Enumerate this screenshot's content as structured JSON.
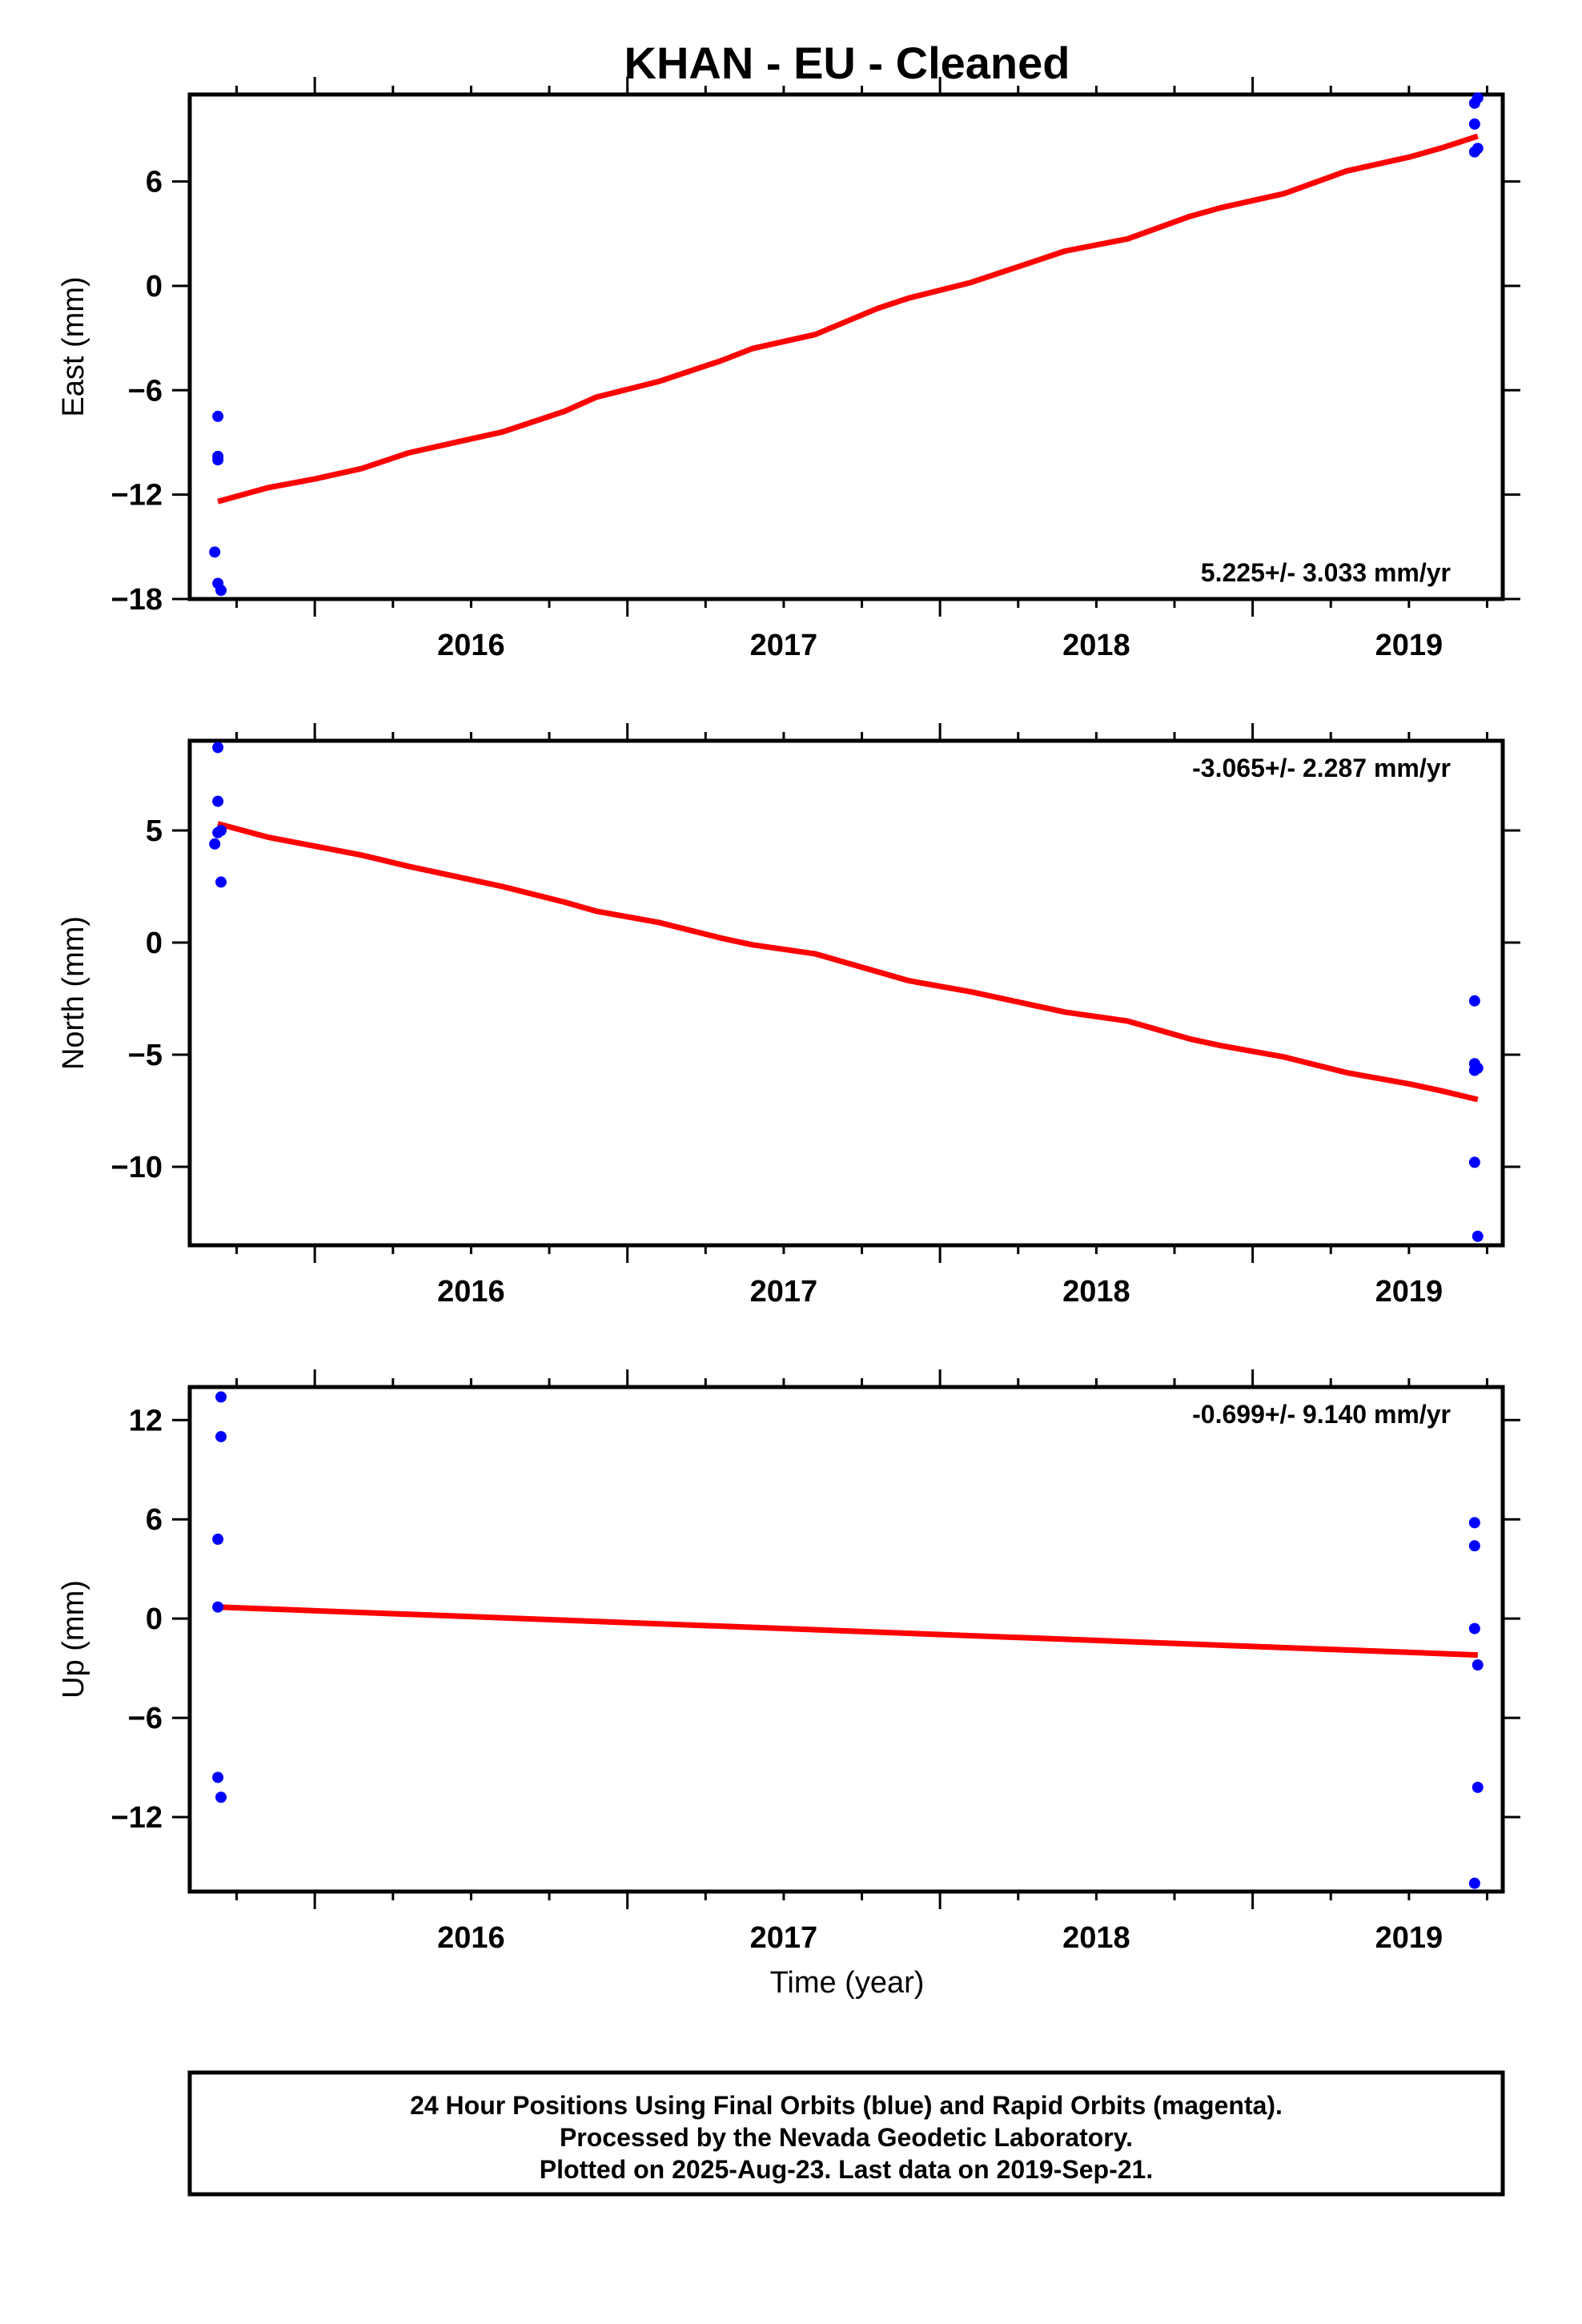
{
  "chart_data": {
    "title": "KHAN  - EU - Cleaned",
    "xlabel": "Time (year)",
    "x_tick_labels": [
      "2016",
      "2017",
      "2018",
      "2019"
    ],
    "xlim": [
      2015.6,
      2019.8
    ],
    "colors": {
      "data": "#0000ff",
      "fit": "#ff0000",
      "frame": "#000000"
    },
    "footer_lines": [
      "24 Hour Positions Using Final Orbits (blue) and Rapid Orbits (magenta).",
      "Processed by the Nevada Geodetic Laboratory.",
      "Plotted on 2025-Aug-23. Last data on 2019-Sep-21."
    ],
    "panels": [
      {
        "name": "east",
        "type": "scatter",
        "ylabel": "East (mm)",
        "ylim": [
          -18,
          11
        ],
        "yticks": [
          -18,
          -12,
          -6,
          0,
          6
        ],
        "rate_label": "5.225+/- 3.033 mm/yr",
        "rate_position": "bottom-right",
        "points": [
          [
            2015.69,
            -7.5
          ],
          [
            2015.69,
            -9.8
          ],
          [
            2015.69,
            -10.0
          ],
          [
            2015.68,
            -15.3
          ],
          [
            2015.69,
            -17.1
          ],
          [
            2015.7,
            -17.5
          ],
          [
            2019.71,
            10.5
          ],
          [
            2019.72,
            10.8
          ],
          [
            2019.71,
            9.3
          ],
          [
            2019.71,
            7.7
          ],
          [
            2019.72,
            7.9
          ]
        ],
        "fit": [
          [
            2015.69,
            -12.4
          ],
          [
            2015.85,
            -11.6
          ],
          [
            2016.0,
            -11.1
          ],
          [
            2016.15,
            -10.5
          ],
          [
            2016.3,
            -9.6
          ],
          [
            2016.5,
            -8.8
          ],
          [
            2016.6,
            -8.4
          ],
          [
            2016.8,
            -7.2
          ],
          [
            2016.9,
            -6.4
          ],
          [
            2017.1,
            -5.5
          ],
          [
            2017.3,
            -4.3
          ],
          [
            2017.4,
            -3.6
          ],
          [
            2017.6,
            -2.8
          ],
          [
            2017.8,
            -1.3
          ],
          [
            2017.9,
            -0.7
          ],
          [
            2018.1,
            0.2
          ],
          [
            2018.3,
            1.4
          ],
          [
            2018.4,
            2.0
          ],
          [
            2018.6,
            2.7
          ],
          [
            2018.8,
            4.0
          ],
          [
            2018.9,
            4.5
          ],
          [
            2019.1,
            5.3
          ],
          [
            2019.3,
            6.6
          ],
          [
            2019.5,
            7.4
          ],
          [
            2019.6,
            7.9
          ],
          [
            2019.72,
            8.6
          ]
        ]
      },
      {
        "name": "north",
        "type": "scatter",
        "ylabel": "North (mm)",
        "ylim": [
          -13.5,
          9
        ],
        "yticks": [
          -10,
          -5,
          0,
          5
        ],
        "rate_label": "-3.065+/- 2.287 mm/yr",
        "rate_position": "top-right",
        "points": [
          [
            2015.69,
            8.7
          ],
          [
            2015.69,
            6.3
          ],
          [
            2015.69,
            4.9
          ],
          [
            2015.68,
            4.4
          ],
          [
            2015.7,
            5.0
          ],
          [
            2015.7,
            2.7
          ],
          [
            2019.71,
            -2.6
          ],
          [
            2019.71,
            -5.4
          ],
          [
            2019.72,
            -5.6
          ],
          [
            2019.71,
            -5.7
          ],
          [
            2019.71,
            -9.8
          ],
          [
            2019.72,
            -13.1
          ]
        ],
        "fit": [
          [
            2015.69,
            5.3
          ],
          [
            2015.85,
            4.7
          ],
          [
            2016.0,
            4.3
          ],
          [
            2016.15,
            3.9
          ],
          [
            2016.3,
            3.4
          ],
          [
            2016.5,
            2.8
          ],
          [
            2016.6,
            2.5
          ],
          [
            2016.8,
            1.8
          ],
          [
            2016.9,
            1.4
          ],
          [
            2017.1,
            0.9
          ],
          [
            2017.3,
            0.2
          ],
          [
            2017.4,
            -0.1
          ],
          [
            2017.6,
            -0.5
          ],
          [
            2017.8,
            -1.3
          ],
          [
            2017.9,
            -1.7
          ],
          [
            2018.1,
            -2.2
          ],
          [
            2018.3,
            -2.8
          ],
          [
            2018.4,
            -3.1
          ],
          [
            2018.6,
            -3.5
          ],
          [
            2018.8,
            -4.3
          ],
          [
            2018.9,
            -4.6
          ],
          [
            2019.1,
            -5.1
          ],
          [
            2019.3,
            -5.8
          ],
          [
            2019.5,
            -6.3
          ],
          [
            2019.6,
            -6.6
          ],
          [
            2019.72,
            -7.0
          ]
        ]
      },
      {
        "name": "up",
        "type": "scatter",
        "ylabel": "Up (mm)",
        "ylim": [
          -16.5,
          14
        ],
        "yticks": [
          -12,
          -6,
          0,
          6,
          12
        ],
        "rate_label": "-0.699+/- 9.140 mm/yr",
        "rate_position": "top-right",
        "points": [
          [
            2015.7,
            13.4
          ],
          [
            2015.7,
            11.0
          ],
          [
            2015.69,
            4.8
          ],
          [
            2015.69,
            0.7
          ],
          [
            2015.69,
            -9.6
          ],
          [
            2015.7,
            -10.8
          ],
          [
            2019.71,
            5.8
          ],
          [
            2019.71,
            4.4
          ],
          [
            2019.71,
            -0.6
          ],
          [
            2019.72,
            -2.8
          ],
          [
            2019.72,
            -10.2
          ],
          [
            2019.71,
            -16.0
          ]
        ],
        "fit": [
          [
            2015.69,
            0.7
          ],
          [
            2019.72,
            -2.2
          ]
        ]
      }
    ]
  }
}
